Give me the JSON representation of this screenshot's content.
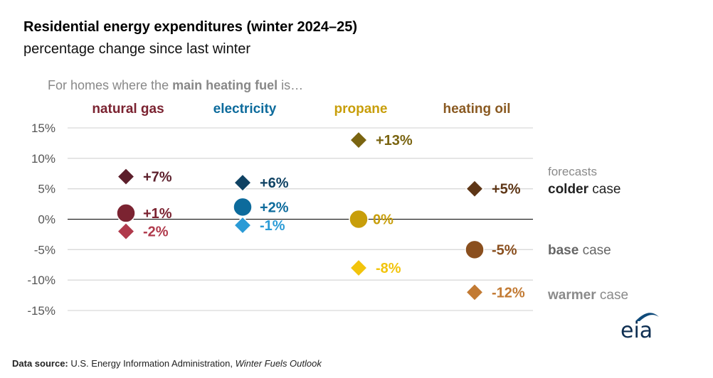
{
  "title": "Residential energy expenditures (winter 2024–25)",
  "subtitle": "percentage change since last winter",
  "header_note": {
    "prefix": "For homes where the ",
    "bold": "main heating fuel",
    "suffix": " is…"
  },
  "source": {
    "label": "Data source:",
    "agency": "U.S. Energy Information Administration, ",
    "publication": "Winter Fuels Outlook"
  },
  "logo_text": "eia",
  "legend": {
    "forecasts": "forecasts",
    "colder_bold": "colder",
    "base_bold": "base",
    "warmer_bold": "warmer",
    "case_word": " case"
  },
  "colors": {
    "natural_gas": [
      "#5c1f2b",
      "#7b2331",
      "#b03a4c"
    ],
    "electricity": [
      "#0f4263",
      "#0d6b9c",
      "#2b9bd6"
    ],
    "propane": [
      "#7a6410",
      "#c89e0a",
      "#f2c40c"
    ],
    "heating_oil": [
      "#5e3616",
      "#8a4f1e",
      "#c27a33"
    ],
    "header": [
      "#7b2331",
      "#0d6b9c",
      "#c89e0a",
      "#8a5a22"
    ]
  },
  "chart_data": {
    "type": "scatter",
    "title": "Residential energy expenditures (winter 2024–25)",
    "ylabel": "percentage change since last winter",
    "ylim": [
      -15,
      15
    ],
    "yticks": [
      15,
      10,
      5,
      0,
      -5,
      -10,
      -15
    ],
    "ytick_labels": [
      "15%",
      "10%",
      "5%",
      "0%",
      "-5%",
      "-10%",
      "-15%"
    ],
    "categories": [
      "natural gas",
      "electricity",
      "propane",
      "heating oil"
    ],
    "series": [
      {
        "name": "colder case",
        "marker": "diamond",
        "values": [
          7,
          6,
          13,
          5
        ],
        "labels": [
          "+7%",
          "+6%",
          "+13%",
          "+5%"
        ]
      },
      {
        "name": "base case",
        "marker": "circle",
        "values": [
          1,
          2,
          0,
          -5
        ],
        "labels": [
          "+1%",
          "+2%",
          "0%",
          "-5%"
        ]
      },
      {
        "name": "warmer case",
        "marker": "diamond",
        "values": [
          -2,
          -1,
          -8,
          -12
        ],
        "labels": [
          "-2%",
          "-1%",
          "-8%",
          "-12%"
        ]
      }
    ]
  }
}
